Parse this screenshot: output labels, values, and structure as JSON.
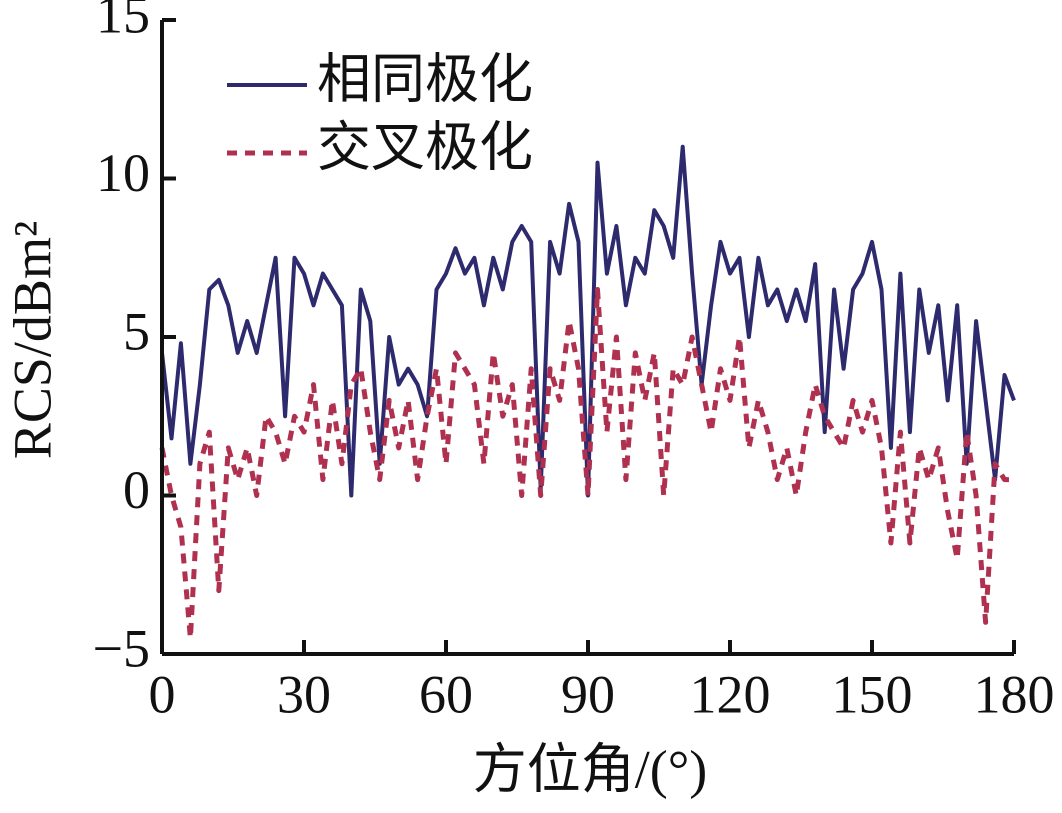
{
  "chart_data": {
    "type": "line",
    "x_label": "方位角/(°)",
    "y_label": "RCS/dBm²",
    "xlim": [
      0,
      180
    ],
    "ylim": [
      -5,
      15
    ],
    "xticks": [
      0,
      30,
      60,
      90,
      120,
      150,
      180
    ],
    "yticks": [
      {
        "value": -5,
        "label": "−5"
      },
      0,
      5,
      10,
      15
    ],
    "grid": false,
    "legend": "upper left",
    "x": [
      0,
      2,
      4,
      6,
      8,
      10,
      12,
      14,
      16,
      18,
      20,
      22,
      24,
      26,
      28,
      30,
      32,
      34,
      36,
      38,
      40,
      42,
      44,
      46,
      48,
      50,
      52,
      54,
      56,
      58,
      60,
      62,
      64,
      66,
      68,
      70,
      72,
      74,
      76,
      78,
      80,
      82,
      84,
      86,
      88,
      90,
      92,
      94,
      96,
      98,
      100,
      102,
      104,
      106,
      108,
      110,
      112,
      114,
      116,
      118,
      120,
      122,
      124,
      126,
      128,
      130,
      132,
      134,
      136,
      138,
      140,
      142,
      144,
      146,
      148,
      150,
      152,
      154,
      156,
      158,
      160,
      162,
      164,
      166,
      168,
      170,
      172,
      174,
      176,
      178,
      180
    ],
    "series": [
      {
        "name": "相同极化",
        "color": "#2e2a6e",
        "linestyle": "solid",
        "values": [
          4.5,
          1.8,
          4.8,
          1.0,
          3.5,
          6.5,
          6.8,
          6.0,
          4.5,
          5.5,
          4.5,
          6.0,
          7.5,
          2.5,
          7.5,
          7.0,
          6.0,
          7.0,
          6.5,
          6.0,
          0.0,
          6.5,
          5.5,
          1.0,
          5.0,
          3.5,
          4.0,
          3.5,
          2.5,
          6.5,
          7.0,
          7.8,
          7.0,
          7.5,
          6.0,
          7.5,
          6.5,
          8.0,
          8.5,
          8.0,
          0.2,
          8.0,
          7.0,
          9.2,
          8.0,
          0.0,
          10.5,
          7.0,
          8.5,
          6.0,
          7.5,
          7.0,
          9.0,
          8.5,
          7.5,
          11.0,
          7.0,
          3.5,
          6.0,
          8.0,
          7.0,
          7.5,
          5.0,
          7.5,
          6.0,
          6.5,
          5.5,
          6.5,
          5.5,
          7.3,
          2.0,
          6.5,
          4.0,
          6.5,
          7.0,
          8.0,
          6.5,
          1.5,
          7.0,
          2.0,
          6.5,
          4.5,
          6.0,
          3.0,
          6.0,
          1.0,
          5.5,
          3.0,
          0.5,
          3.8,
          3.0
        ]
      },
      {
        "name": "交叉极化",
        "color": "#b0304f",
        "linestyle": "dashed",
        "values": [
          1.5,
          0.0,
          -1.0,
          -4.5,
          1.0,
          2.0,
          -3.0,
          1.5,
          0.5,
          1.5,
          0.0,
          2.5,
          2.0,
          1.0,
          2.5,
          2.0,
          3.5,
          0.5,
          3.0,
          1.0,
          3.5,
          4.0,
          2.0,
          0.5,
          3.0,
          1.5,
          3.0,
          0.5,
          2.5,
          4.0,
          1.0,
          4.5,
          4.0,
          3.5,
          1.0,
          4.5,
          2.5,
          3.5,
          0.0,
          4.0,
          0.0,
          4.0,
          3.0,
          5.5,
          4.0,
          0.0,
          6.5,
          2.0,
          5.0,
          0.5,
          4.5,
          3.0,
          4.5,
          0.0,
          4.0,
          3.5,
          5.0,
          3.5,
          2.0,
          4.0,
          3.0,
          5.0,
          1.5,
          3.0,
          2.0,
          0.5,
          1.5,
          0.0,
          2.0,
          3.5,
          2.5,
          2.0,
          1.5,
          3.0,
          2.0,
          3.0,
          1.5,
          -1.5,
          2.0,
          -1.5,
          1.5,
          0.5,
          1.5,
          -0.5,
          -2.0,
          2.0,
          0.0,
          -4.0,
          1.0,
          0.5,
          0.5
        ]
      }
    ]
  }
}
